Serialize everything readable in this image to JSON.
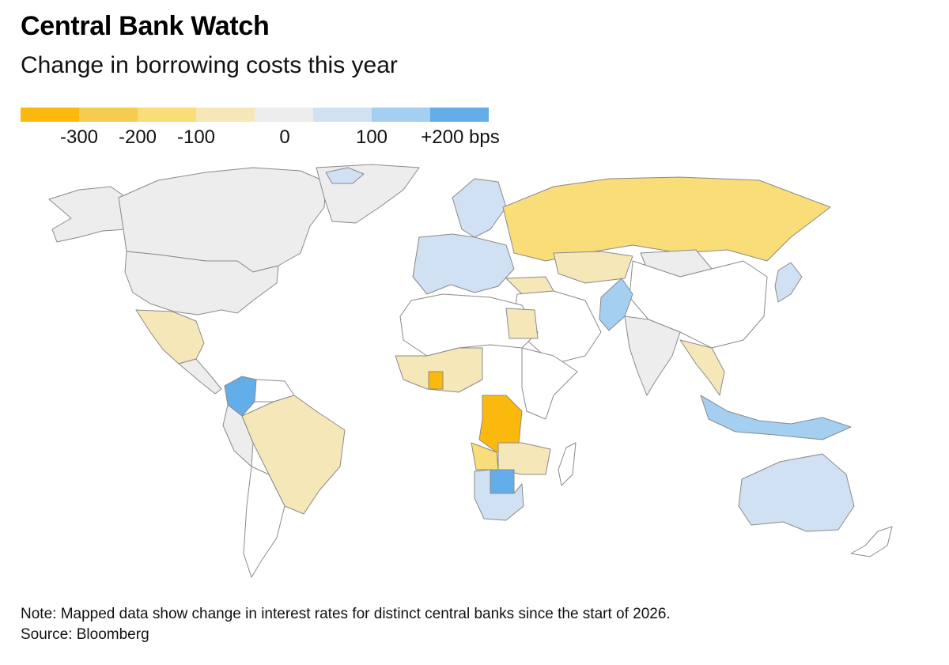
{
  "header": {
    "title": "Central Bank Watch",
    "subtitle": "Change in borrowing costs this year"
  },
  "legend": {
    "colors": [
      "#fbb90d",
      "#f5cb50",
      "#f9dd78",
      "#f6e7b8",
      "#ededed",
      "#cfe1f2",
      "#a4cff0",
      "#63aee8"
    ],
    "labels": [
      "-300",
      "-200",
      "-100",
      "0",
      "100",
      "+200 bps"
    ]
  },
  "map": {
    "colors": {
      "no_data": "#ffffff",
      "unchanged": "#ededed",
      "cut_small": "#f6e7b8",
      "cut_medium": "#f9dd78",
      "cut_large": "#f5cb50",
      "cut_largest": "#fbb90d",
      "hike_small": "#cfe1f2",
      "hike_medium": "#a4cff0",
      "hike_large": "#63aee8",
      "border": "#8a8a8a"
    },
    "regions": [
      {
        "name": "Canada",
        "category": "unchanged"
      },
      {
        "name": "United States",
        "category": "unchanged"
      },
      {
        "name": "Greenland",
        "category": "unchanged"
      },
      {
        "name": "Mexico",
        "category": "cut_small"
      },
      {
        "name": "Colombia",
        "category": "hike_large"
      },
      {
        "name": "Brazil",
        "category": "cut_small"
      },
      {
        "name": "Iceland",
        "category": "hike_small"
      },
      {
        "name": "Europe",
        "category": "hike_small"
      },
      {
        "name": "Russia",
        "category": "cut_medium"
      },
      {
        "name": "Kazakhstan",
        "category": "cut_small"
      },
      {
        "name": "China",
        "category": "no_data"
      },
      {
        "name": "Pakistan",
        "category": "hike_medium"
      },
      {
        "name": "India",
        "category": "unchanged"
      },
      {
        "name": "Japan",
        "category": "hike_small"
      },
      {
        "name": "Indonesia",
        "category": "hike_medium"
      },
      {
        "name": "Australia",
        "category": "hike_small"
      },
      {
        "name": "DR Congo",
        "category": "cut_largest"
      },
      {
        "name": "Botswana",
        "category": "hike_large"
      },
      {
        "name": "South Africa",
        "category": "hike_small"
      },
      {
        "name": "Ghana",
        "category": "cut_largest"
      }
    ]
  },
  "footer": {
    "note": "Note: Mapped data show change in interest rates for distinct central banks since the start of 2026.",
    "source": "Source: Bloomberg"
  }
}
